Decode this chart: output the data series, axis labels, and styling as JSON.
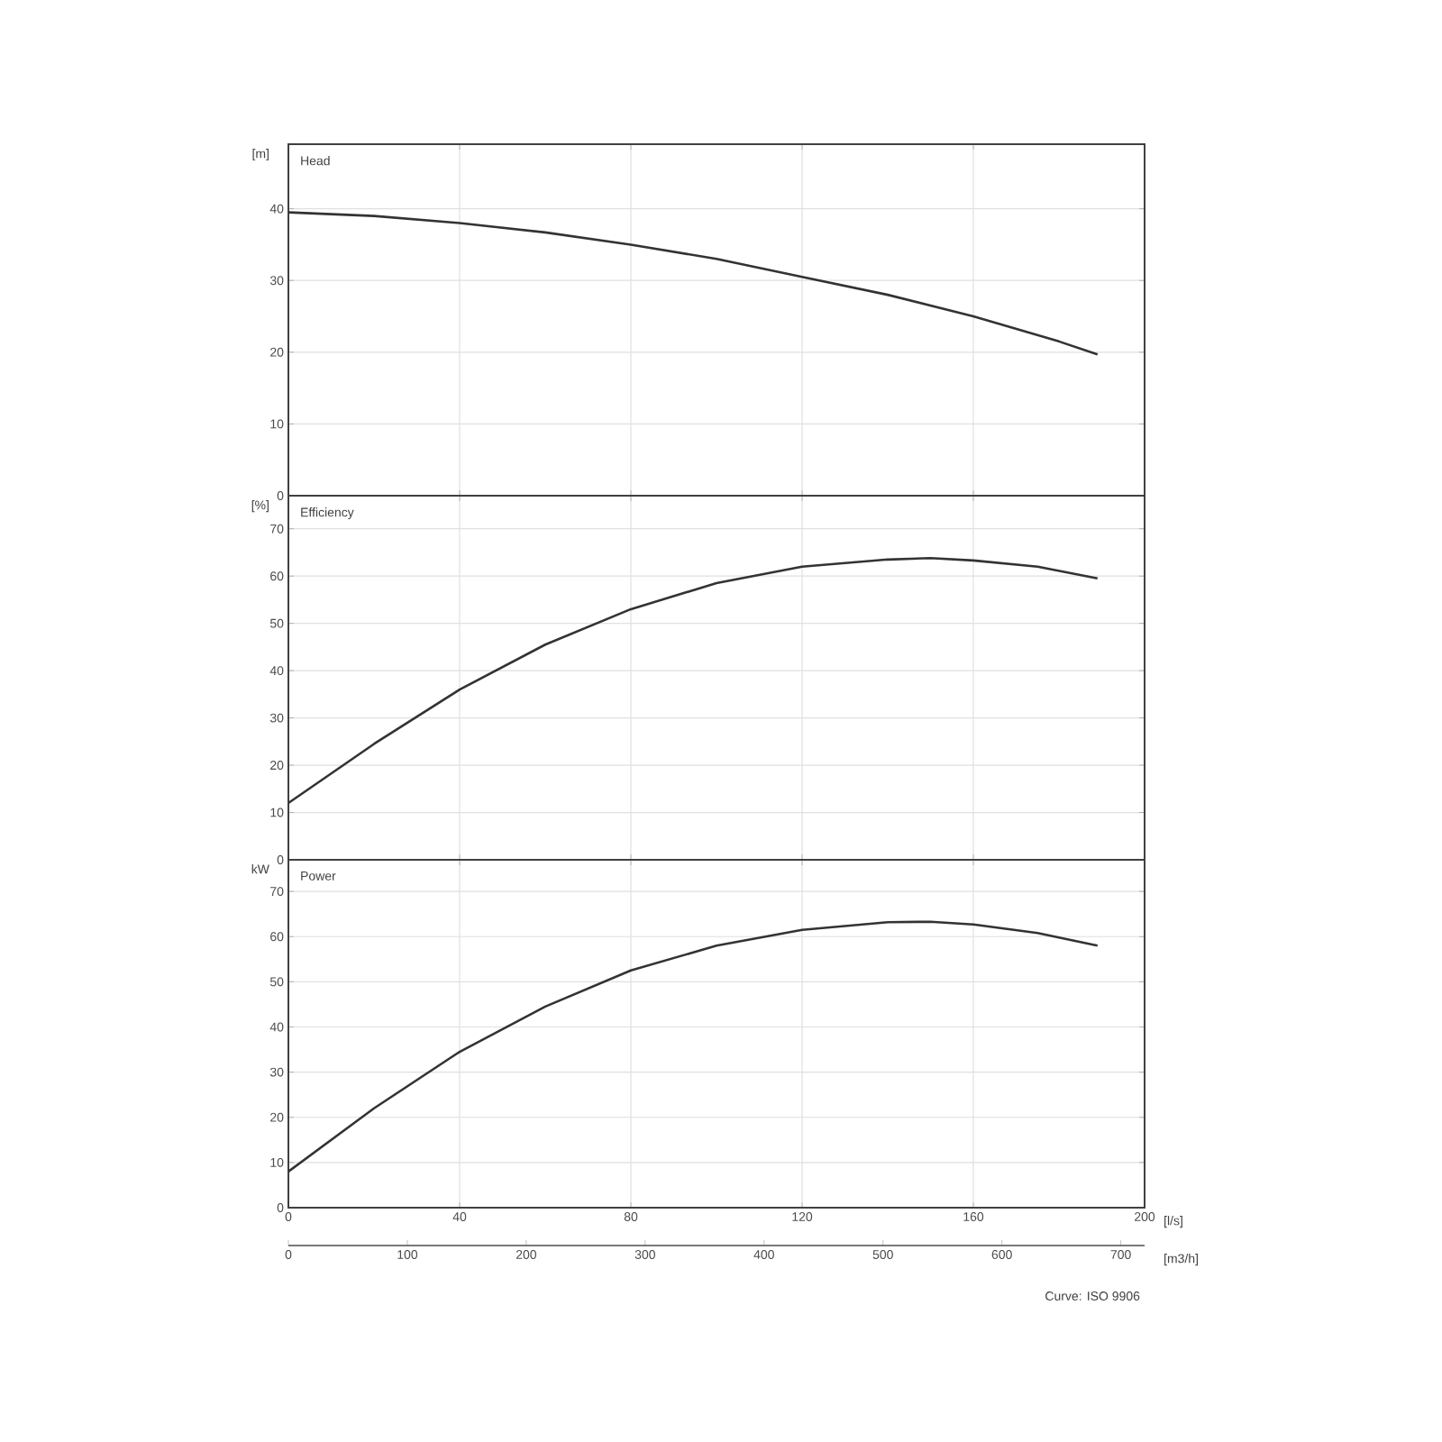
{
  "chart_data": [
    {
      "type": "line",
      "title": "Head",
      "ylabel": "[m]",
      "color": "#333333",
      "grid": true,
      "tick_labels": "y",
      "x": [
        0,
        20,
        40,
        60,
        80,
        100,
        120,
        140,
        160,
        180,
        189
      ],
      "values": [
        39.5,
        39,
        38,
        36.7,
        35,
        33,
        30.5,
        28,
        25,
        21.5,
        19.7
      ],
      "xlim": [
        0,
        200
      ],
      "xticks": [
        0,
        40,
        80,
        120,
        160,
        200
      ],
      "ylim": [
        0,
        49
      ],
      "yticks": [
        0,
        10,
        20,
        30,
        40
      ]
    },
    {
      "type": "line",
      "title": "Efficiency",
      "ylabel": "[%]",
      "color": "#333333",
      "grid": true,
      "tick_labels": "y",
      "x": [
        0,
        20,
        40,
        60,
        80,
        100,
        120,
        140,
        150,
        160,
        175,
        189
      ],
      "values": [
        12,
        24.5,
        36,
        45.5,
        53,
        58.5,
        62,
        63.5,
        63.8,
        63.3,
        62,
        59.5
      ],
      "xlim": [
        0,
        200
      ],
      "xticks": [
        0,
        40,
        80,
        120,
        160,
        200
      ],
      "ylim": [
        0,
        77
      ],
      "yticks": [
        0,
        10,
        20,
        30,
        40,
        50,
        60,
        70
      ]
    },
    {
      "type": "line",
      "title": "Power",
      "ylabel": "kW",
      "xlabel": "[l/s]",
      "x2label": "[m3/h]",
      "color": "#333333",
      "grid": true,
      "x": [
        0,
        20,
        40,
        60,
        80,
        100,
        120,
        140,
        150,
        160,
        175,
        189
      ],
      "values": [
        8,
        22,
        34.5,
        44.5,
        52.5,
        58,
        61.5,
        63.2,
        63.3,
        62.7,
        60.8,
        58
      ],
      "xlim": [
        0,
        200
      ],
      "xticks": [
        0,
        40,
        80,
        120,
        160,
        200
      ],
      "ylim": [
        0,
        77
      ],
      "yticks": [
        0,
        10,
        20,
        30,
        40,
        50,
        60,
        70
      ],
      "x2lim": [
        0,
        720
      ],
      "x2ticks": [
        0,
        100,
        200,
        300,
        400,
        500,
        600,
        700
      ],
      "annotations": [
        "Curve: ISO 9906"
      ]
    }
  ]
}
